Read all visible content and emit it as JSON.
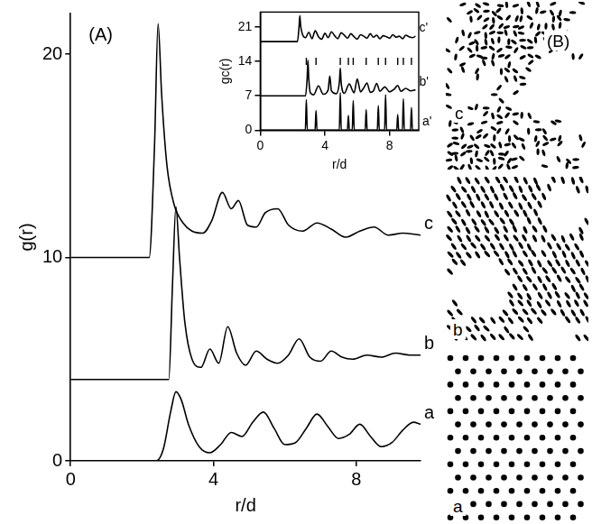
{
  "chart_data": [
    {
      "type": "line",
      "title": "(A)",
      "x_label": "r/d",
      "y_label": "g(r)",
      "xlim": [
        0,
        9.8
      ],
      "xticks": [
        0,
        4,
        8
      ],
      "ylim": [
        0,
        22
      ],
      "yticks": [
        0,
        10,
        20
      ],
      "grid": false,
      "series": [
        {
          "name": "c",
          "color": "#000000",
          "x": [
            0,
            2.2,
            2.35,
            2.45,
            2.55,
            2.7,
            2.9,
            3.15,
            3.4,
            3.7,
            3.95,
            4.25,
            4.5,
            4.7,
            4.95,
            5.2,
            5.45,
            5.8,
            6.1,
            6.5,
            6.9,
            7.3,
            7.7,
            8.1,
            8.5,
            8.9,
            9.3,
            9.8
          ],
          "values": [
            10,
            10,
            15.5,
            21.5,
            18.0,
            14.5,
            12.6,
            11.7,
            11.3,
            11.2,
            11.8,
            13.2,
            12.4,
            12.8,
            11.6,
            11.5,
            12.2,
            12.4,
            11.6,
            11.3,
            11.7,
            11.4,
            11.0,
            11.3,
            11.5,
            11.1,
            11.2,
            11.1
          ]
        },
        {
          "name": "b",
          "color": "#000000",
          "x": [
            0,
            2.75,
            2.85,
            2.95,
            3.05,
            3.2,
            3.4,
            3.65,
            3.9,
            4.15,
            4.4,
            4.65,
            4.9,
            5.2,
            5.5,
            5.8,
            6.1,
            6.4,
            6.7,
            7.0,
            7.3,
            7.6,
            7.9,
            8.3,
            8.7,
            9.1,
            9.5,
            9.8
          ],
          "values": [
            4,
            4,
            8.5,
            12.5,
            10.0,
            6.8,
            5.0,
            4.6,
            5.5,
            4.8,
            6.6,
            5.3,
            4.7,
            5.4,
            5.0,
            4.8,
            5.2,
            6.0,
            5.1,
            4.9,
            5.4,
            5.1,
            5.0,
            5.2,
            5.1,
            5.3,
            5.2,
            5.2
          ]
        },
        {
          "name": "a",
          "color": "#000000",
          "x": [
            0,
            2.4,
            2.6,
            2.8,
            2.95,
            3.1,
            3.3,
            3.6,
            3.9,
            4.2,
            4.5,
            4.8,
            5.1,
            5.4,
            5.7,
            6.0,
            6.3,
            6.6,
            6.9,
            7.2,
            7.5,
            7.8,
            8.1,
            8.4,
            8.7,
            9.0,
            9.3,
            9.6,
            9.8
          ],
          "values": [
            0,
            0,
            0.6,
            2.4,
            3.4,
            3.0,
            1.8,
            0.7,
            0.4,
            0.8,
            1.4,
            1.2,
            1.9,
            2.4,
            1.6,
            0.8,
            0.9,
            1.6,
            2.3,
            1.7,
            1.1,
            1.3,
            1.8,
            1.2,
            0.7,
            0.9,
            1.5,
            1.9,
            1.8
          ]
        }
      ]
    },
    {
      "type": "line",
      "x_label": "r/d",
      "y_label": "gc(r)",
      "xlim": [
        0,
        9.8
      ],
      "xticks": [
        0,
        4,
        8
      ],
      "ylim": [
        0,
        24
      ],
      "yticks": [
        0,
        7,
        14,
        21
      ],
      "grid": false,
      "series": [
        {
          "name": "c'",
          "color": "#000000",
          "x": [
            0,
            2.3,
            2.4,
            2.45,
            2.5,
            2.6,
            2.8,
            3.0,
            3.2,
            3.4,
            3.6,
            3.8,
            4.0,
            4.2,
            4.4,
            4.6,
            4.8,
            5.0,
            5.2,
            5.4,
            5.6,
            5.8,
            6.0,
            6.2,
            6.4,
            6.6,
            6.8,
            7.0,
            7.2,
            7.4,
            7.6,
            7.8,
            8.0,
            8.2,
            8.4,
            8.6,
            8.8,
            9.0,
            9.2,
            9.4,
            9.6
          ],
          "values": [
            18,
            18,
            21.0,
            23.3,
            21.2,
            19.6,
            18.8,
            19.9,
            18.6,
            20.2,
            19.0,
            18.5,
            19.7,
            18.8,
            20.0,
            19.2,
            18.6,
            19.8,
            19.3,
            18.7,
            19.6,
            19.0,
            18.5,
            19.4,
            19.1,
            18.7,
            19.6,
            18.9,
            19.3,
            18.6,
            19.2,
            19.0,
            18.7,
            19.4,
            18.9,
            19.1,
            18.6,
            19.3,
            19.0,
            18.8,
            19.1
          ]
        },
        {
          "type": "scatter",
          "marker": "line",
          "color": "#000000",
          "x": [
            2.85,
            3.45,
            4.95,
            5.45,
            5.75,
            6.55,
            7.3,
            7.75,
            8.5,
            8.85,
            9.35
          ],
          "values": [
            14,
            14,
            14,
            14,
            14,
            14,
            14,
            14,
            14,
            14,
            14
          ]
        },
        {
          "name": "b'",
          "color": "#000000",
          "x": [
            0,
            2.8,
            2.9,
            2.95,
            3.0,
            3.1,
            3.3,
            3.6,
            3.9,
            4.2,
            4.3,
            4.4,
            4.7,
            4.9,
            4.95,
            5.0,
            5.2,
            5.5,
            5.8,
            6.0,
            6.2,
            6.4,
            6.6,
            6.8,
            7.0,
            7.2,
            7.4,
            7.7,
            8.0,
            8.3,
            8.5,
            8.7,
            9.0,
            9.3,
            9.6
          ],
          "values": [
            7,
            7,
            10.5,
            14.2,
            10.5,
            7.6,
            7.2,
            9.0,
            7.3,
            8.2,
            11.0,
            8.0,
            7.4,
            10.0,
            12.6,
            9.8,
            7.5,
            9.4,
            7.6,
            10.4,
            7.8,
            8.6,
            9.6,
            7.7,
            8.0,
            9.5,
            7.9,
            8.8,
            7.8,
            8.4,
            9.1,
            7.9,
            8.5,
            8.0,
            8.2
          ]
        },
        {
          "name": "a'",
          "color": "#000000",
          "x": [
            0,
            2.79,
            2.85,
            2.91,
            3.39,
            3.45,
            3.51,
            4.89,
            4.95,
            5.01,
            5.39,
            5.45,
            5.51,
            5.69,
            5.75,
            5.81,
            6.49,
            6.55,
            6.61,
            7.24,
            7.3,
            7.36,
            7.69,
            7.75,
            7.81,
            8.44,
            8.5,
            8.56,
            8.79,
            8.85,
            8.91,
            9.29,
            9.35,
            9.41,
            9.8
          ],
          "values": [
            0,
            0,
            6.2,
            0,
            0,
            4.0,
            0,
            0,
            7.6,
            0,
            0,
            3.0,
            0,
            0,
            6.0,
            0,
            0,
            4.2,
            0,
            0,
            5.0,
            0,
            0,
            7.2,
            0,
            0,
            3.2,
            0,
            0,
            6.4,
            0,
            0,
            4.6,
            0,
            0
          ]
        }
      ]
    }
  ],
  "panel_b": {
    "label": "(B)",
    "snapshots": [
      {
        "label": "c"
      },
      {
        "label": "b"
      },
      {
        "label": "a"
      }
    ]
  }
}
